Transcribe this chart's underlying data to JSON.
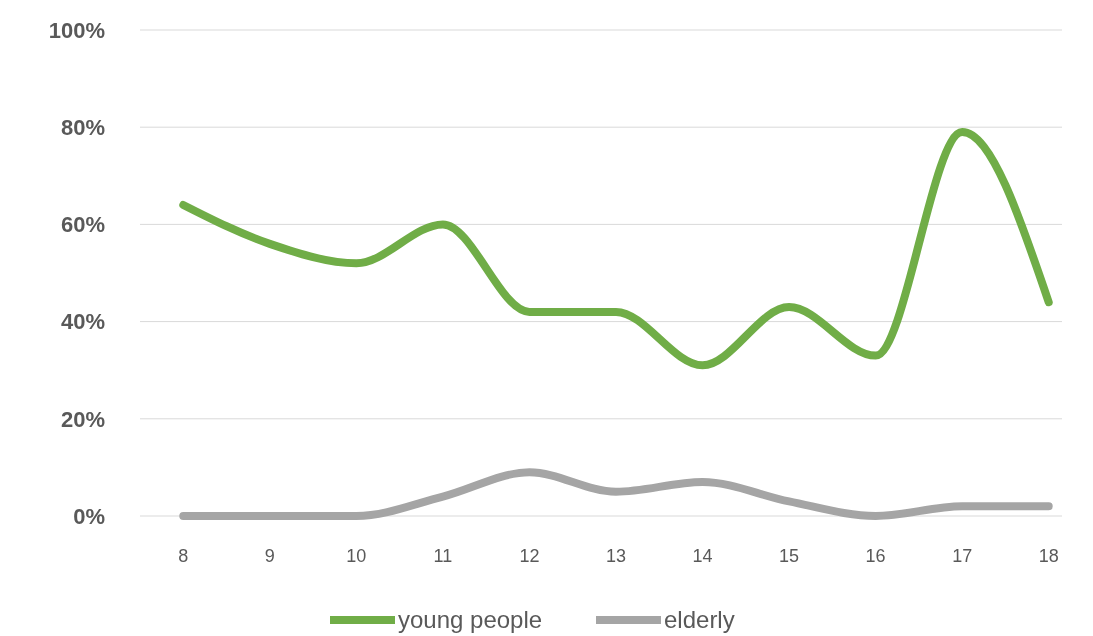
{
  "chart_data": {
    "type": "line",
    "categories": [
      "8",
      "9",
      "10",
      "11",
      "12",
      "13",
      "14",
      "15",
      "16",
      "17",
      "18"
    ],
    "series": [
      {
        "name": "young people",
        "color": "#70ad47",
        "values": [
          64,
          56,
          52,
          60,
          42,
          42,
          31,
          43,
          33,
          79,
          44
        ]
      },
      {
        "name": "elderly",
        "color": "#a5a5a5",
        "values": [
          0,
          0,
          0,
          4,
          9,
          5,
          7,
          3,
          0,
          2,
          2
        ]
      }
    ],
    "ylim": [
      0,
      100
    ],
    "yticks": [
      {
        "value": 0,
        "label": "0%"
      },
      {
        "value": 20,
        "label": "20%"
      },
      {
        "value": 40,
        "label": "40%"
      },
      {
        "value": 60,
        "label": "60%"
      },
      {
        "value": 80,
        "label": "80%"
      },
      {
        "value": 100,
        "label": "100%"
      }
    ],
    "grid": "y",
    "legend": "bottom",
    "marker": "none",
    "line_style": "solid"
  }
}
